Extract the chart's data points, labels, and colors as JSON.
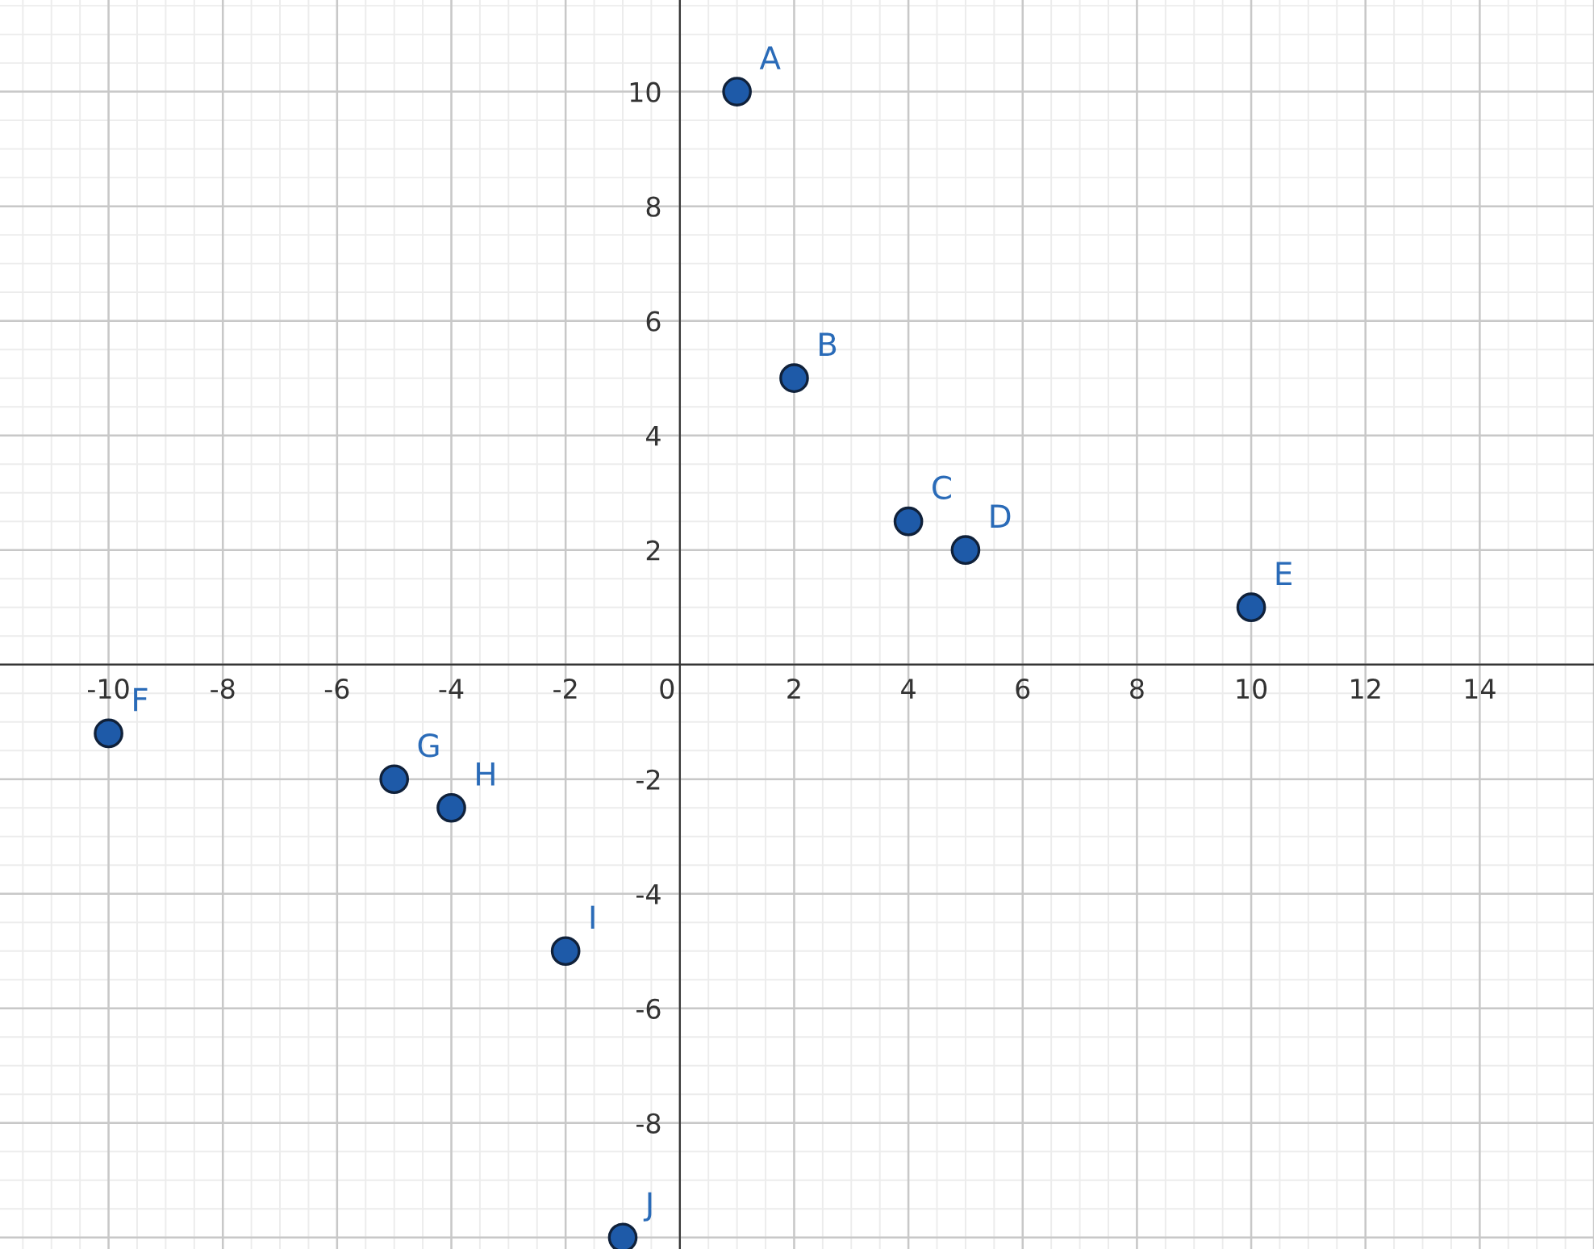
{
  "chart_data": {
    "type": "scatter",
    "x": [
      1,
      2,
      4,
      5,
      10,
      -10,
      -5,
      -4,
      -2,
      -1
    ],
    "series": [
      {
        "color": "#1e5aa8",
        "values": [
          10,
          5,
          2.5,
          2,
          1,
          -1.2,
          -2,
          -2.5,
          -5,
          -10
        ]
      }
    ],
    "marker": "circle",
    "grid": true,
    "xlim": [
      -11.9,
      16
    ],
    "ylim": [
      -10.2,
      11.6
    ],
    "xticks": [
      -10,
      -8,
      -6,
      -4,
      -2,
      0,
      2,
      4,
      6,
      8,
      10,
      12,
      14
    ],
    "yticks": [
      -8,
      -6,
      -4,
      -2,
      2,
      4,
      6,
      8,
      10
    ],
    "annotations": [
      {
        "text": "A",
        "x": 1,
        "y": 10
      },
      {
        "text": "B",
        "x": 2,
        "y": 5
      },
      {
        "text": "C",
        "x": 4,
        "y": 2.5
      },
      {
        "text": "D",
        "x": 5,
        "y": 2
      },
      {
        "text": "E",
        "x": 10,
        "y": 1
      },
      {
        "text": "F",
        "x": -10,
        "y": -1.2
      },
      {
        "text": "G",
        "x": -5,
        "y": -2
      },
      {
        "text": "H",
        "x": -4,
        "y": -2.5
      },
      {
        "text": "I",
        "x": -2,
        "y": -5
      },
      {
        "text": "J",
        "x": -1,
        "y": -10
      }
    ]
  }
}
